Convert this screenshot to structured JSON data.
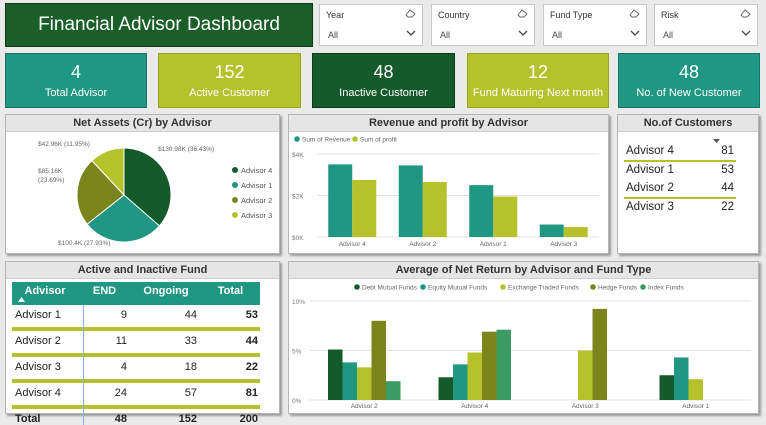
{
  "title": "Financial Advisor Dashboard",
  "filters": [
    {
      "label": "Year",
      "value": "All"
    },
    {
      "label": "Country",
      "value": "All"
    },
    {
      "label": "Fund Type",
      "value": "All"
    },
    {
      "label": "Risk",
      "value": "All"
    }
  ],
  "kpis": [
    {
      "value": "4",
      "label": "Total Advisor",
      "color": "#1f9783"
    },
    {
      "value": "152",
      "label": "Active Customer",
      "color": "#b5c22c"
    },
    {
      "value": "48",
      "label": "Inactive Customer",
      "color": "#155a2a"
    },
    {
      "value": "12",
      "label": "Fund Maturing Next month",
      "color": "#b5c22c"
    },
    {
      "value": "48",
      "label": "No. of New Customer",
      "color": "#1f9783"
    }
  ],
  "net_assets": {
    "title": "Net Assets (Cr) by Advisor",
    "chart_data": {
      "type": "pie",
      "slices": [
        {
          "name": "Advisor 4",
          "value": 130.98,
          "label": "$130.98K (36.43%)",
          "color": "#155a2a"
        },
        {
          "name": "Advisor 1",
          "value": 100.4,
          "label": "$100.4K (27.93%)",
          "color": "#1f9783"
        },
        {
          "name": "Advisor 2",
          "value": 85.16,
          "label": "$85.16K (23.69%)",
          "color": "#7a861c"
        },
        {
          "name": "Advisor 3",
          "value": 42.96,
          "label": "$42.96K (11.95%)",
          "color": "#b5c22c"
        }
      ]
    }
  },
  "revenue_profit": {
    "title": "Revenue and profit by Advisor",
    "chart_data": {
      "type": "bar",
      "categories": [
        "Advisor 4",
        "Advisor 2",
        "Advisor 1",
        "Advisor 3"
      ],
      "series": [
        {
          "name": "Sum of Revenue",
          "values": [
            3500,
            3450,
            2500,
            600
          ],
          "color": "#1f9783"
        },
        {
          "name": "Sum of profit",
          "values": [
            2750,
            2650,
            1950,
            480
          ],
          "color": "#b5c22c"
        }
      ],
      "yticks": [
        "$0K",
        "$2K",
        "$4K"
      ],
      "ylim": [
        0,
        4000
      ]
    }
  },
  "customers": {
    "title": "No.of Customers",
    "rows": [
      {
        "name": "Advisor 4",
        "value": "81"
      },
      {
        "name": "Advisor 1",
        "value": "53"
      },
      {
        "name": "Advisor 2",
        "value": "44"
      },
      {
        "name": "Advisor 3",
        "value": "22"
      }
    ]
  },
  "funds": {
    "title": "Active and Inactive Fund",
    "headers": [
      "Advisor",
      "END",
      "Ongoing",
      "Total"
    ],
    "rows": [
      {
        "advisor": "Advisor 1",
        "end": "9",
        "ongoing": "44",
        "total": "53"
      },
      {
        "advisor": "Advisor 2",
        "end": "11",
        "ongoing": "33",
        "total": "44"
      },
      {
        "advisor": "Advisor 3",
        "end": "4",
        "ongoing": "18",
        "total": "22"
      },
      {
        "advisor": "Advisor 4",
        "end": "24",
        "ongoing": "57",
        "total": "81"
      }
    ],
    "total": {
      "advisor": "Total",
      "end": "48",
      "ongoing": "152",
      "total": "200"
    }
  },
  "net_return": {
    "title": "Average of Net Return by Advisor and Fund Type",
    "chart_data": {
      "type": "bar",
      "categories": [
        "Advisor 2",
        "Advisor 4",
        "Advisor 3",
        "Advisor 1"
      ],
      "series": [
        {
          "name": "Debt Mutual Funds",
          "values": [
            5.1,
            2.3,
            null,
            2.5
          ],
          "color": "#155a2a"
        },
        {
          "name": "Equity Mutual Funds",
          "values": [
            3.8,
            3.6,
            null,
            4.3
          ],
          "color": "#1f9783"
        },
        {
          "name": "Exchange Traded Funds",
          "values": [
            3.3,
            4.8,
            5.0,
            2.1
          ],
          "color": "#b5c22c"
        },
        {
          "name": "Hedge Funds",
          "values": [
            8.0,
            6.9,
            9.2,
            null
          ],
          "color": "#7a861c"
        },
        {
          "name": "Index Funds",
          "values": [
            1.9,
            7.1,
            null,
            null
          ],
          "color": "#3c9a63"
        }
      ],
      "yticks": [
        "0%",
        "5%",
        "10%"
      ],
      "ylim": [
        0,
        10
      ]
    }
  }
}
